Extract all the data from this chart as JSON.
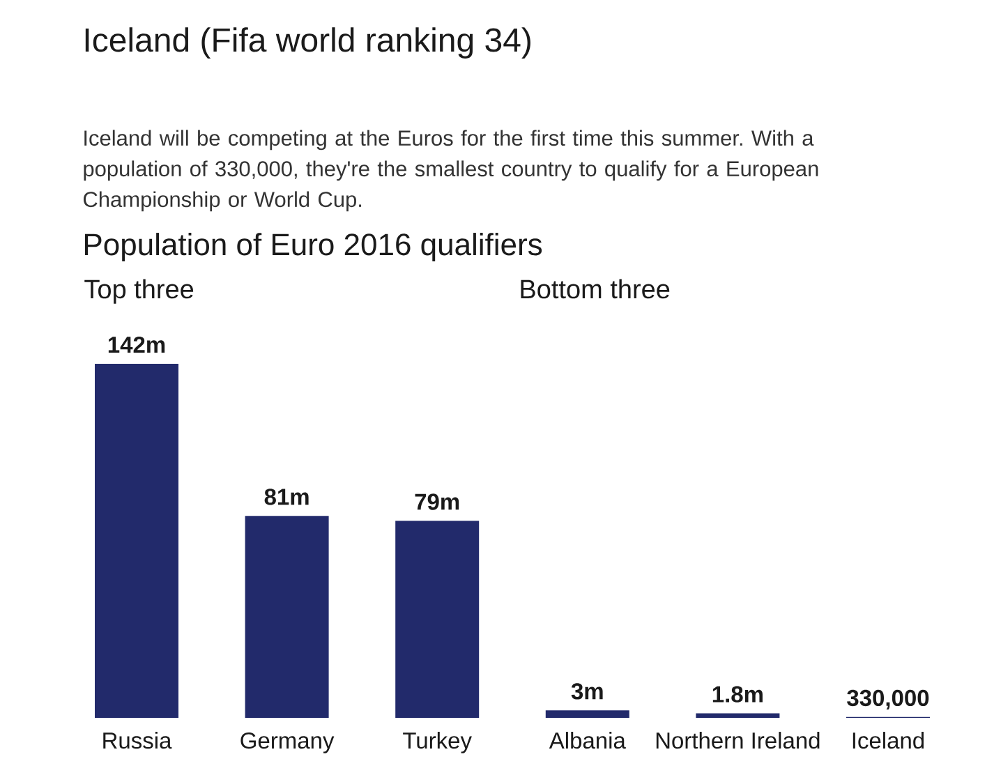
{
  "chart_data": {
    "type": "bar",
    "title": "Iceland (Fifa world ranking 34)",
    "subtitle": "Iceland will be competing at the Euros for the first time this summer. With a population of 330,000, they're the smallest country to qualify for a European Championship or World Cup.",
    "annotations": [
      "Population of Euro 2016 qualifiers",
      "Top three",
      "Bottom three"
    ],
    "categories": [
      "Russia",
      "Germany",
      "Turkey",
      "Albania",
      "Northern Ireland",
      "Iceland"
    ],
    "values": [
      142000000,
      81000000,
      79000000,
      3000000,
      1800000,
      330000
    ],
    "value_labels": [
      "142m",
      "81m",
      "79m",
      "3m",
      "1.8m",
      "330,000"
    ],
    "color": "#222a6b"
  }
}
